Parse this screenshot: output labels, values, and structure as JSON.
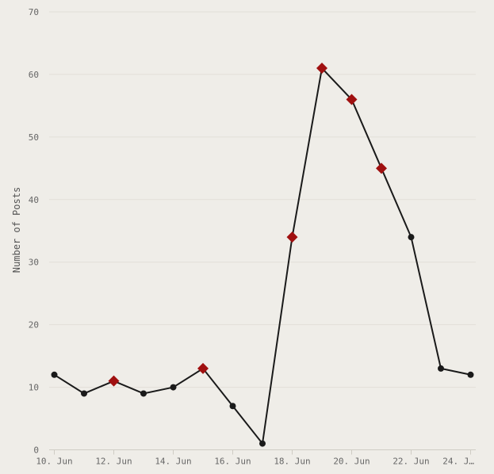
{
  "chart_data": {
    "type": "line",
    "title": "",
    "xlabel": "",
    "ylabel": "Number of Posts",
    "ylim": [
      0,
      70
    ],
    "yticks": [
      0,
      10,
      20,
      30,
      40,
      50,
      60,
      70
    ],
    "x": [
      "10. Jun",
      "11. Jun",
      "12. Jun",
      "13. Jun",
      "14. Jun",
      "15. Jun",
      "16. Jun",
      "17. Jun",
      "18. Jun",
      "19. Jun",
      "20. Jun",
      "21. Jun",
      "22. Jun",
      "23. Jun",
      "24. Jun"
    ],
    "xtick_labels": [
      "10. Jun",
      "12. Jun",
      "14. Jun",
      "16. Jun",
      "18. Jun",
      "20. Jun",
      "22. Jun",
      "24. J…"
    ],
    "values": [
      12,
      9,
      11,
      9,
      10,
      13,
      7,
      1,
      34,
      61,
      56,
      45,
      34,
      13,
      12
    ],
    "highlighted": [
      false,
      false,
      true,
      false,
      false,
      true,
      false,
      false,
      true,
      true,
      true,
      true,
      false,
      false,
      false
    ],
    "grid": true,
    "colors": {
      "line": "#1a1a1a",
      "point": "#1a1a1a",
      "highlight": "#a01010",
      "background": "#efede8"
    }
  }
}
